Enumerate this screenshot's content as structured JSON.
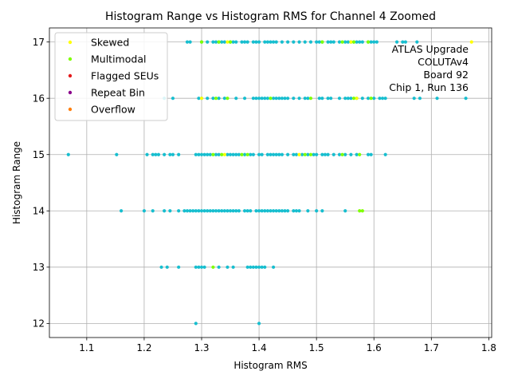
{
  "chart_data": {
    "type": "scatter",
    "title": "Histogram Range vs Histogram RMS for Channel 4 Zoomed",
    "xlabel": "Histogram RMS",
    "ylabel": "Histogram Range",
    "xlim": [
      1.035,
      1.805
    ],
    "ylim": [
      11.75,
      17.25
    ],
    "xticks": [
      1.1,
      1.2,
      1.3,
      1.4,
      1.5,
      1.6,
      1.7,
      1.8
    ],
    "xtick_labels": [
      "1.1",
      "1.2",
      "1.3",
      "1.4",
      "1.5",
      "1.6",
      "1.7",
      "1.8"
    ],
    "yticks": [
      12,
      13,
      14,
      15,
      16,
      17
    ],
    "ytick_labels": [
      "12",
      "13",
      "14",
      "15",
      "16",
      "17"
    ],
    "grid": true,
    "legend_position": "top-left",
    "annotation_lines": [
      "ATLAS Upgrade",
      "COLUTAv4",
      "Board 92",
      "Chip 1, Run 136"
    ],
    "base_color": "#17becf",
    "series": [
      {
        "name": "Skewed",
        "color": "#ffff00",
        "points": [
          [
            1.345,
            17
          ],
          [
            1.56,
            17
          ],
          [
            1.77,
            17
          ],
          [
            1.3,
            16
          ],
          [
            1.57,
            16
          ],
          [
            1.34,
            15
          ],
          [
            1.47,
            15
          ]
        ]
      },
      {
        "name": "Multimodal",
        "color": "#7fff00",
        "points": [
          [
            1.3,
            17
          ],
          [
            1.33,
            17
          ],
          [
            1.35,
            17
          ],
          [
            1.51,
            17
          ],
          [
            1.545,
            17
          ],
          [
            1.565,
            17
          ],
          [
            1.59,
            17
          ],
          [
            1.325,
            16
          ],
          [
            1.345,
            16
          ],
          [
            1.42,
            16
          ],
          [
            1.49,
            16
          ],
          [
            1.565,
            16
          ],
          [
            1.595,
            16
          ],
          [
            1.32,
            15
          ],
          [
            1.335,
            15
          ],
          [
            1.37,
            15
          ],
          [
            1.38,
            15
          ],
          [
            1.48,
            15
          ],
          [
            1.49,
            15
          ],
          [
            1.545,
            15
          ],
          [
            1.575,
            15
          ],
          [
            1.58,
            14
          ],
          [
            1.575,
            14
          ],
          [
            1.32,
            13
          ]
        ]
      },
      {
        "name": "Flagged SEUs",
        "color": "#e41a1c",
        "points": []
      },
      {
        "name": "Repeat Bin",
        "color": "#8b008b",
        "points": []
      },
      {
        "name": "Overflow",
        "color": "#ff7f0e",
        "points": []
      }
    ],
    "rows": [
      {
        "y": 17,
        "x": [
          1.275,
          1.28,
          1.3,
          1.31,
          1.32,
          1.325,
          1.33,
          1.335,
          1.34,
          1.35,
          1.355,
          1.36,
          1.37,
          1.375,
          1.38,
          1.39,
          1.395,
          1.4,
          1.41,
          1.415,
          1.42,
          1.425,
          1.43,
          1.44,
          1.45,
          1.46,
          1.47,
          1.48,
          1.49,
          1.5,
          1.505,
          1.51,
          1.52,
          1.525,
          1.53,
          1.54,
          1.55,
          1.555,
          1.56,
          1.565,
          1.57,
          1.575,
          1.58,
          1.59,
          1.595,
          1.6,
          1.605,
          1.64,
          1.65,
          1.655,
          1.675
        ]
      },
      {
        "y": 16,
        "x": [
          1.235,
          1.25,
          1.295,
          1.3,
          1.31,
          1.32,
          1.33,
          1.34,
          1.36,
          1.375,
          1.39,
          1.395,
          1.4,
          1.405,
          1.41,
          1.415,
          1.425,
          1.43,
          1.435,
          1.44,
          1.445,
          1.45,
          1.46,
          1.47,
          1.48,
          1.485,
          1.505,
          1.51,
          1.52,
          1.525,
          1.54,
          1.55,
          1.555,
          1.56,
          1.57,
          1.58,
          1.59,
          1.6,
          1.61,
          1.615,
          1.62,
          1.67,
          1.68,
          1.71,
          1.76
        ]
      },
      {
        "y": 15,
        "x": [
          1.068,
          1.152,
          1.205,
          1.215,
          1.22,
          1.225,
          1.235,
          1.245,
          1.25,
          1.26,
          1.29,
          1.295,
          1.3,
          1.305,
          1.31,
          1.315,
          1.325,
          1.33,
          1.345,
          1.35,
          1.355,
          1.36,
          1.365,
          1.375,
          1.385,
          1.39,
          1.4,
          1.405,
          1.415,
          1.42,
          1.425,
          1.43,
          1.435,
          1.44,
          1.45,
          1.46,
          1.465,
          1.475,
          1.485,
          1.495,
          1.5,
          1.51,
          1.515,
          1.52,
          1.53,
          1.54,
          1.55,
          1.56,
          1.57,
          1.59,
          1.595,
          1.62
        ]
      },
      {
        "y": 14,
        "x": [
          1.16,
          1.2,
          1.215,
          1.235,
          1.245,
          1.26,
          1.27,
          1.275,
          1.28,
          1.285,
          1.29,
          1.295,
          1.3,
          1.305,
          1.31,
          1.315,
          1.32,
          1.325,
          1.33,
          1.335,
          1.34,
          1.345,
          1.35,
          1.355,
          1.36,
          1.365,
          1.375,
          1.38,
          1.385,
          1.395,
          1.4,
          1.405,
          1.41,
          1.415,
          1.42,
          1.425,
          1.43,
          1.435,
          1.44,
          1.445,
          1.45,
          1.46,
          1.465,
          1.47,
          1.485,
          1.5,
          1.51,
          1.55
        ]
      },
      {
        "y": 13,
        "x": [
          1.23,
          1.24,
          1.26,
          1.29,
          1.295,
          1.3,
          1.305,
          1.33,
          1.345,
          1.355,
          1.38,
          1.385,
          1.39,
          1.395,
          1.4,
          1.405,
          1.41,
          1.425
        ]
      },
      {
        "y": 12,
        "x": [
          1.29,
          1.4
        ]
      }
    ]
  }
}
